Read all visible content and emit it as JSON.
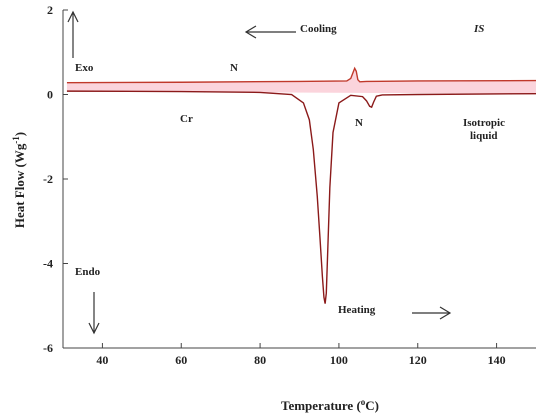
{
  "chart_data": {
    "type": "line",
    "xlabel": "Temperature (",
    "xlabel_unit": "°C)",
    "ylabel": "Heat Flow (Wg",
    "ylabel_sup": "-1",
    "ylabel_end": ")",
    "xlim": [
      30,
      150
    ],
    "ylim": [
      -6,
      2
    ],
    "xticks": [
      40,
      60,
      80,
      100,
      120,
      140
    ],
    "yticks": [
      2,
      0,
      -2,
      -4,
      -6
    ],
    "grid": false,
    "series": [
      {
        "role": "cooling",
        "color": "#c0392b",
        "x": [
          31,
          60,
          90,
          102,
          103,
          103.5,
          104,
          104.4,
          104.8,
          105.3,
          107,
          120,
          150
        ],
        "y": [
          0.28,
          0.29,
          0.31,
          0.32,
          0.38,
          0.5,
          0.62,
          0.55,
          0.35,
          0.3,
          0.31,
          0.32,
          0.33
        ]
      },
      {
        "role": "heating",
        "color": "#8b1a1a",
        "x": [
          31,
          60,
          80,
          88,
          91,
          92.5,
          93.5,
          94.5,
          95.2,
          95.8,
          96.2,
          96.5,
          96.8,
          97.2,
          97.7,
          98.5,
          100,
          103,
          106,
          107,
          107.8,
          108.3,
          108.8,
          109.5,
          111,
          120,
          150
        ],
        "y": [
          0.08,
          0.07,
          0.05,
          0.0,
          -0.2,
          -0.6,
          -1.3,
          -2.4,
          -3.4,
          -4.3,
          -4.8,
          -4.95,
          -4.7,
          -3.6,
          -2.2,
          -0.9,
          -0.2,
          -0.02,
          -0.05,
          -0.15,
          -0.28,
          -0.3,
          -0.18,
          -0.04,
          -0.01,
          0.0,
          0.02
        ]
      }
    ],
    "annotations": {
      "cooling": "Cooling",
      "is": "IS",
      "exo": "Exo",
      "n_top": "N",
      "cr": "Cr",
      "n_mid": "N",
      "isotropic1": "Isotropic",
      "isotropic2": "liquid",
      "endo": "Endo",
      "heating": "Heating"
    },
    "colors": {
      "axis": "#444444",
      "fill": "#fbd4dc",
      "cooling": "#c0392b",
      "heating": "#8b1a1a"
    }
  }
}
